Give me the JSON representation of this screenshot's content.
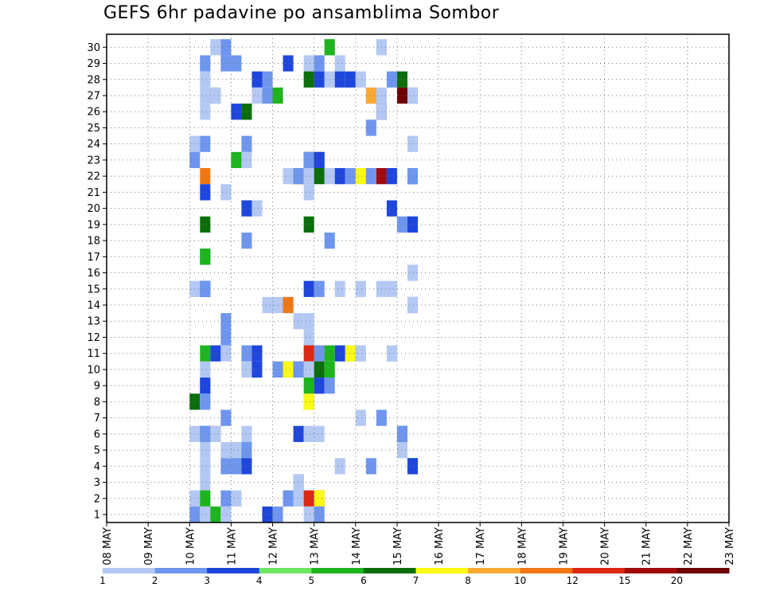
{
  "title": "GEFS 6hr padavine po ansamblima Sombor",
  "chart_data": {
    "type": "heatmap",
    "title": "GEFS 6hr padavine po ansamblima Sombor",
    "y_categories": [
      1,
      2,
      3,
      4,
      5,
      6,
      7,
      8,
      9,
      10,
      11,
      12,
      13,
      14,
      15,
      16,
      17,
      18,
      19,
      20,
      21,
      22,
      23,
      24,
      25,
      26,
      27,
      28,
      29,
      30
    ],
    "x_tick_labels": [
      "08 MAY",
      "09 MAY",
      "10 MAY",
      "11 MAY",
      "12 MAY",
      "13 MAY",
      "14 MAY",
      "15 MAY",
      "16 MAY",
      "17 MAY",
      "18 MAY",
      "19 MAY",
      "20 MAY",
      "21 MAY",
      "22 MAY",
      "23 MAY"
    ],
    "x_step": "6hr",
    "cells_format": "[member, 6h-step index (0 = 08 MAY 00z), level index 0-11]",
    "cells": [
      [
        30,
        10,
        0
      ],
      [
        30,
        11,
        1
      ],
      [
        30,
        21,
        0
      ],
      [
        30,
        21,
        4
      ],
      [
        30,
        26,
        0
      ],
      [
        29,
        9,
        0
      ],
      [
        29,
        9,
        1
      ],
      [
        29,
        11,
        1
      ],
      [
        29,
        12,
        1
      ],
      [
        29,
        17,
        2
      ],
      [
        29,
        19,
        0
      ],
      [
        29,
        20,
        1
      ],
      [
        29,
        22,
        0
      ],
      [
        28,
        9,
        0
      ],
      [
        28,
        14,
        2
      ],
      [
        28,
        15,
        1
      ],
      [
        28,
        19,
        5
      ],
      [
        28,
        20,
        2
      ],
      [
        28,
        21,
        0
      ],
      [
        28,
        22,
        2
      ],
      [
        28,
        23,
        2
      ],
      [
        28,
        24,
        0
      ],
      [
        28,
        27,
        1
      ],
      [
        28,
        28,
        5
      ],
      [
        27,
        9,
        0
      ],
      [
        27,
        10,
        4
      ],
      [
        27,
        10,
        0
      ],
      [
        27,
        14,
        0
      ],
      [
        27,
        15,
        1
      ],
      [
        27,
        16,
        4
      ],
      [
        27,
        25,
        1
      ],
      [
        27,
        25,
        7
      ],
      [
        27,
        26,
        0
      ],
      [
        27,
        28,
        11
      ],
      [
        27,
        29,
        2
      ],
      [
        27,
        29,
        0
      ],
      [
        26,
        9,
        0
      ],
      [
        26,
        12,
        2
      ],
      [
        26,
        13,
        1
      ],
      [
        26,
        13,
        5
      ],
      [
        26,
        26,
        11
      ],
      [
        26,
        26,
        0
      ],
      [
        25,
        25,
        0
      ],
      [
        25,
        25,
        1
      ],
      [
        24,
        8,
        0
      ],
      [
        24,
        9,
        1
      ],
      [
        24,
        13,
        1
      ],
      [
        24,
        29,
        0
      ],
      [
        23,
        8,
        1
      ],
      [
        23,
        12,
        4
      ],
      [
        23,
        13,
        0
      ],
      [
        23,
        19,
        11
      ],
      [
        23,
        19,
        1
      ],
      [
        23,
        20,
        10
      ],
      [
        23,
        20,
        2
      ],
      [
        22,
        9,
        8
      ],
      [
        22,
        17,
        0
      ],
      [
        22,
        18,
        8
      ],
      [
        22,
        18,
        1
      ],
      [
        22,
        19,
        0
      ],
      [
        22,
        20,
        5
      ],
      [
        22,
        21,
        0
      ],
      [
        22,
        22,
        2
      ],
      [
        22,
        23,
        1
      ],
      [
        22,
        24,
        6
      ],
      [
        22,
        25,
        1
      ],
      [
        22,
        26,
        10
      ],
      [
        22,
        27,
        2
      ],
      [
        22,
        29,
        2
      ],
      [
        22,
        29,
        1
      ],
      [
        21,
        9,
        2
      ],
      [
        21,
        11,
        0
      ],
      [
        21,
        19,
        0
      ],
      [
        20,
        13,
        2
      ],
      [
        20,
        14,
        0
      ],
      [
        20,
        27,
        2
      ],
      [
        19,
        9,
        5
      ],
      [
        19,
        19,
        5
      ],
      [
        19,
        28,
        0
      ],
      [
        19,
        28,
        1
      ],
      [
        19,
        29,
        1
      ],
      [
        19,
        29,
        2
      ],
      [
        18,
        13,
        1
      ],
      [
        18,
        21,
        0
      ],
      [
        18,
        21,
        1
      ],
      [
        17,
        9,
        2
      ],
      [
        17,
        9,
        4
      ],
      [
        16,
        29,
        0
      ],
      [
        15,
        8,
        0
      ],
      [
        15,
        9,
        2
      ],
      [
        15,
        9,
        1
      ],
      [
        15,
        19,
        2
      ],
      [
        15,
        20,
        1
      ],
      [
        15,
        22,
        0
      ],
      [
        15,
        24,
        0
      ],
      [
        15,
        26,
        0
      ],
      [
        15,
        27,
        0
      ],
      [
        14,
        15,
        0
      ],
      [
        14,
        16,
        0
      ],
      [
        14,
        17,
        1
      ],
      [
        14,
        17,
        8
      ],
      [
        14,
        29,
        2
      ],
      [
        14,
        29,
        0
      ],
      [
        13,
        11,
        1
      ],
      [
        13,
        18,
        0
      ],
      [
        13,
        19,
        0
      ],
      [
        12,
        11,
        1
      ],
      [
        12,
        19,
        0
      ],
      [
        11,
        9,
        4
      ],
      [
        11,
        10,
        2
      ],
      [
        11,
        11,
        0
      ],
      [
        11,
        13,
        1
      ],
      [
        11,
        14,
        2
      ],
      [
        11,
        19,
        9
      ],
      [
        11,
        20,
        8
      ],
      [
        11,
        20,
        1
      ],
      [
        11,
        21,
        4
      ],
      [
        11,
        22,
        2
      ],
      [
        11,
        23,
        0
      ],
      [
        11,
        23,
        6
      ],
      [
        11,
        24,
        0
      ],
      [
        11,
        27,
        0
      ],
      [
        10,
        9,
        0
      ],
      [
        10,
        13,
        0
      ],
      [
        10,
        14,
        2
      ],
      [
        10,
        16,
        1
      ],
      [
        10,
        17,
        4
      ],
      [
        10,
        17,
        6
      ],
      [
        10,
        18,
        11
      ],
      [
        10,
        18,
        1
      ],
      [
        10,
        19,
        0
      ],
      [
        10,
        20,
        5
      ],
      [
        10,
        21,
        4
      ],
      [
        9,
        9,
        1
      ],
      [
        9,
        9,
        2
      ],
      [
        9,
        19,
        4
      ],
      [
        9,
        20,
        0
      ],
      [
        9,
        20,
        2
      ],
      [
        9,
        21,
        1
      ],
      [
        8,
        8,
        0
      ],
      [
        8,
        8,
        5
      ],
      [
        8,
        9,
        0
      ],
      [
        8,
        9,
        1
      ],
      [
        8,
        19,
        1
      ],
      [
        8,
        19,
        6
      ],
      [
        7,
        11,
        0
      ],
      [
        7,
        11,
        1
      ],
      [
        7,
        24,
        0
      ],
      [
        7,
        26,
        1
      ],
      [
        6,
        8,
        0
      ],
      [
        6,
        9,
        4
      ],
      [
        6,
        9,
        1
      ],
      [
        6,
        10,
        8
      ],
      [
        6,
        10,
        0
      ],
      [
        6,
        13,
        0
      ],
      [
        6,
        18,
        2
      ],
      [
        6,
        19,
        0
      ],
      [
        6,
        20,
        0
      ],
      [
        6,
        28,
        5
      ],
      [
        6,
        28,
        1
      ],
      [
        5,
        9,
        0
      ],
      [
        5,
        11,
        0
      ],
      [
        5,
        12,
        4
      ],
      [
        5,
        12,
        0
      ],
      [
        5,
        13,
        1
      ],
      [
        5,
        28,
        0
      ],
      [
        4,
        9,
        0
      ],
      [
        4,
        11,
        1
      ],
      [
        4,
        12,
        1
      ],
      [
        4,
        13,
        2
      ],
      [
        4,
        22,
        0
      ],
      [
        4,
        25,
        1
      ],
      [
        4,
        29,
        4
      ],
      [
        4,
        29,
        2
      ],
      [
        3,
        9,
        0
      ],
      [
        3,
        18,
        2
      ],
      [
        3,
        18,
        0
      ],
      [
        2,
        8,
        0
      ],
      [
        2,
        9,
        0
      ],
      [
        2,
        9,
        4
      ],
      [
        2,
        11,
        1
      ],
      [
        2,
        12,
        0
      ],
      [
        2,
        17,
        1
      ],
      [
        2,
        18,
        0
      ],
      [
        2,
        19,
        9
      ],
      [
        2,
        20,
        9
      ],
      [
        2,
        20,
        6
      ],
      [
        1,
        8,
        1
      ],
      [
        1,
        9,
        0
      ],
      [
        1,
        10,
        4
      ],
      [
        1,
        11,
        0
      ],
      [
        1,
        15,
        2
      ],
      [
        1,
        16,
        1
      ],
      [
        1,
        19,
        0
      ],
      [
        1,
        20,
        1
      ]
    ],
    "color_levels": {
      "boundaries": [
        "1",
        "2",
        "3",
        "4",
        "5",
        "6",
        "7",
        "8",
        "10",
        "12",
        "15",
        "20"
      ],
      "colors": [
        "#b4c8f4",
        "#6e96ee",
        "#1e46dc",
        "#6ee664",
        "#1eb41e",
        "#0a6e0a",
        "#fafa14",
        "#faaa32",
        "#f07814",
        "#dc2814",
        "#a00a0a",
        "#6e0000"
      ]
    },
    "grid": true,
    "grid_style": "dotted"
  }
}
